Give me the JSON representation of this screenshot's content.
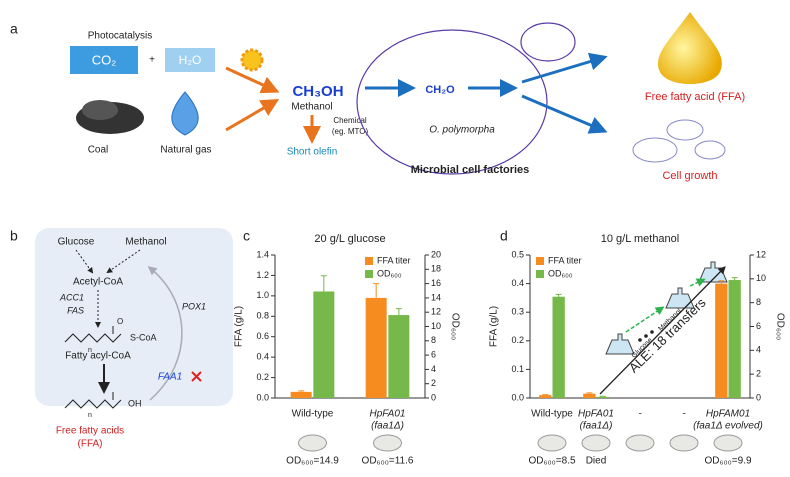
{
  "panel_a": {
    "label": "a",
    "photocatalysis": "Photocatalysis",
    "co2": "CO₂",
    "plus": "+",
    "h2o": "H₂O",
    "coal": "Coal",
    "natural_gas": "Natural gas",
    "methanol_formula": "CH₃OH",
    "methanol": "Methanol",
    "chemical": "Chemical",
    "mto": "(eg. MTO)",
    "short_olefin": "Short olefin",
    "ch2o": "CH₂O",
    "organism": "O. polymorpha",
    "factories": "Microbial cell factories",
    "ffa": "Free fatty acid (FFA)",
    "growth": "Cell growth"
  },
  "panel_b": {
    "label": "b",
    "glucose": "Glucose",
    "methanol": "Methanol",
    "acetyl_coa": "Acetyl-CoA",
    "acc1": "ACC1",
    "fas": "FAS",
    "pox1": "POX1",
    "s_coa": "S-CoA",
    "oxygen": "O",
    "n1": "n",
    "fatty_acyl_coa": "Fatty acyl-CoA",
    "faa1": "FAA1",
    "n2": "n",
    "oh": "OH",
    "ffa": "Free fatty acids",
    "ffa_abbr": "(FFA)"
  },
  "chart_data": [
    {
      "type": "bar",
      "label": "c",
      "title": "20 g/L glucose",
      "ylabel": "FFA (g/L)",
      "y2label": "OD₆₀₀",
      "categories": [
        [
          "Wild-type"
        ],
        [
          "HpFA01",
          "(faa1Δ)"
        ]
      ],
      "series": [
        {
          "name": "FFA titer",
          "color": "#f68b1f",
          "values": [
            0.06,
            0.98
          ],
          "errors": [
            0.01,
            0.14
          ]
        },
        {
          "name": "OD₆₀₀",
          "color": "#77b84a",
          "axis": "y2",
          "values": [
            14.9,
            11.6
          ],
          "errors": [
            2.2,
            0.9
          ]
        }
      ],
      "ylim": [
        0,
        1.4
      ],
      "yticks": [
        {
          "value": 0,
          "label": "0.0"
        },
        0.2,
        0.4,
        0.6,
        0.8,
        {
          "value": 1,
          "label": "1.0"
        },
        1.2,
        1.4
      ],
      "y2lim": [
        0,
        20
      ],
      "y2ticks": [
        0,
        2,
        4,
        6,
        8,
        10,
        12,
        14,
        16,
        18,
        20
      ],
      "legend": "upper right",
      "od_labels": [
        "OD₆₀₀=14.9",
        "OD₆₀₀=11.6"
      ],
      "od_label_colors": [
        "#1f3fbf",
        "#1f3fbf"
      ]
    },
    {
      "type": "bar",
      "label": "d",
      "title": "10 g/L methanol",
      "ylabel": "FFA (g/L)",
      "y2label": "OD₆₀₀",
      "categories": [
        [
          "Wild-type"
        ],
        [
          "HpFA01",
          "(faa1Δ)"
        ],
        [
          "-"
        ],
        [
          "-"
        ],
        [
          "HpFAM01",
          "(faa1Δ evolved)"
        ]
      ],
      "series": [
        {
          "name": "FFA titer",
          "color": "#f68b1f",
          "values": [
            0.01,
            0.015,
            null,
            null,
            0.4
          ],
          "errors": [
            0.002,
            0.003,
            null,
            null,
            0.01
          ]
        },
        {
          "name": "OD₆₀₀",
          "color": "#77b84a",
          "axis": "y2",
          "values": [
            8.5,
            0.1,
            null,
            null,
            9.9
          ],
          "errors": [
            0.2,
            0.05,
            null,
            null,
            0.2
          ]
        }
      ],
      "ylim": [
        0,
        0.5
      ],
      "yticks": [
        {
          "value": 0,
          "label": "0.0"
        },
        0.1,
        0.2,
        0.3,
        0.4,
        0.5
      ],
      "y2lim": [
        0,
        12
      ],
      "y2ticks": [
        0,
        2,
        4,
        6,
        8,
        10,
        12
      ],
      "legend": "upper left",
      "annotation": "ALE: 18 transfers",
      "annotation_glucose": "Glucose",
      "annotation_methanol": "Methanol",
      "od_labels": [
        "OD₆₀₀=8.5",
        "Died",
        null,
        null,
        "OD₆₀₀=9.9"
      ],
      "od_label_colors": [
        "#1f3fbf",
        "#d42020",
        null,
        null,
        "#1f3fbf"
      ]
    }
  ]
}
